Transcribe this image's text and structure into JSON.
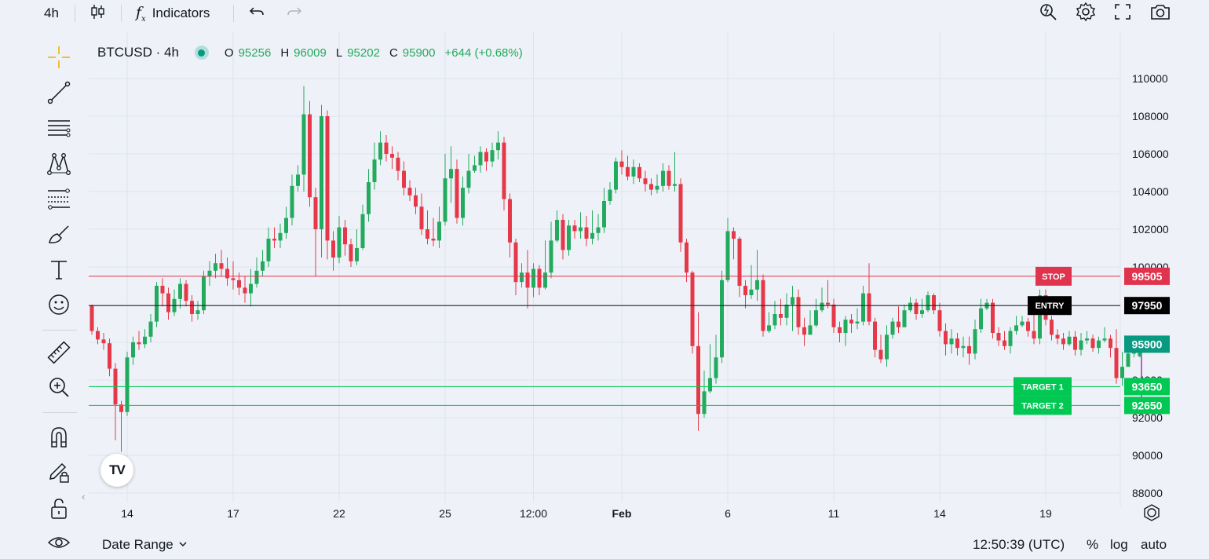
{
  "toolbar": {
    "interval": "4h",
    "indicators_label": "Indicators",
    "icons": [
      "candles-icon",
      "indicators-fx-icon",
      "undo-icon",
      "redo-icon",
      "quick-search-icon",
      "settings-icon",
      "fullscreen-icon",
      "snapshot-camera-icon"
    ]
  },
  "left_toolbar": {
    "icons": [
      "crosshair-icon",
      "trend-line-icon",
      "horizontal-lines-icon",
      "pattern-icon",
      "fib-retracement-icon",
      "brush-icon",
      "text-icon",
      "emoji-icon",
      "ruler-icon",
      "zoom-in-icon",
      "magnet-icon",
      "lock-drawing-icon",
      "unlock-icon",
      "eye-icon"
    ]
  },
  "legend": {
    "symbol": "BTCUSD · 4h",
    "o_label": "O",
    "o_value": "95256",
    "h_label": "H",
    "h_value": "96009",
    "l_label": "L",
    "l_value": "95202",
    "c_label": "C",
    "c_value": "95900",
    "change": "+644 (+0.68%)"
  },
  "bottom_bar": {
    "date_range": "Date Range",
    "time": "12:50:39 (UTC)",
    "percent": "%",
    "log": "log",
    "auto": "auto"
  },
  "logo_text": "TV",
  "colors": {
    "up": "#22ab5e",
    "down": "#e5394a",
    "stop": "#e0334d",
    "entry": "#000000",
    "target": "#00c853",
    "last_price": "#089981",
    "purple": "#9c27b0"
  },
  "chart_data": {
    "type": "candlestick",
    "symbol": "BTCUSD",
    "interval": "4h",
    "ylim": [
      87500,
      111000
    ],
    "y_ticks": [
      88000,
      90000,
      92000,
      94000,
      96000,
      98000,
      100000,
      102000,
      104000,
      106000,
      108000,
      110000
    ],
    "y_tick_labels": [
      "88000",
      "90000",
      "92000",
      "94000",
      "96000",
      "",
      "100000",
      "102000",
      "104000",
      "106000",
      "108000",
      "110000"
    ],
    "x_ticks": [
      {
        "label": "14",
        "bar": 6
      },
      {
        "label": "17",
        "bar": 24
      },
      {
        "label": "22",
        "bar": 42
      },
      {
        "label": "25",
        "bar": 60
      },
      {
        "label": "12:00",
        "bar": 75
      },
      {
        "label": "Feb",
        "bar": 90,
        "bold": true
      },
      {
        "label": "6",
        "bar": 108
      },
      {
        "label": "11",
        "bar": 126
      },
      {
        "label": "14",
        "bar": 144
      },
      {
        "label": "19",
        "bar": 162
      }
    ],
    "candles": [
      [
        97950,
        96600,
        98000,
        96400
      ],
      [
        96600,
        96150,
        96800,
        95900
      ],
      [
        96150,
        95950,
        96500,
        95600
      ],
      [
        95950,
        94600,
        96200,
        94200
      ],
      [
        94600,
        92700,
        94900,
        90800
      ],
      [
        92700,
        92300,
        92900,
        90200
      ],
      [
        92300,
        95200,
        95500,
        92100
      ],
      [
        95200,
        96000,
        96300,
        94800
      ],
      [
        96000,
        95900,
        96600,
        95600
      ],
      [
        95900,
        96300,
        96700,
        95700
      ],
      [
        96300,
        97100,
        97500,
        96000
      ],
      [
        97100,
        99000,
        99200,
        96800
      ],
      [
        99000,
        98600,
        99400,
        97900
      ],
      [
        98600,
        97600,
        98900,
        97200
      ],
      [
        97600,
        98300,
        98800,
        97400
      ],
      [
        98300,
        99100,
        99400,
        97800
      ],
      [
        99100,
        98200,
        99300,
        97900
      ],
      [
        98200,
        97500,
        98500,
        97100
      ],
      [
        97500,
        97700,
        98200,
        97200
      ],
      [
        97700,
        99500,
        99800,
        97500
      ],
      [
        99500,
        99800,
        100300,
        99000
      ],
      [
        99800,
        100200,
        100700,
        99400
      ],
      [
        100200,
        99900,
        100900,
        99500
      ],
      [
        99900,
        99400,
        100500,
        99000
      ],
      [
        99400,
        99300,
        100300,
        98800
      ],
      [
        99300,
        98900,
        99700,
        98500
      ],
      [
        98900,
        98600,
        99500,
        98100
      ],
      [
        98600,
        99100,
        99900,
        97900
      ],
      [
        99100,
        99800,
        100500,
        98900
      ],
      [
        99800,
        100300,
        100900,
        99500
      ],
      [
        100300,
        101500,
        102100,
        100000
      ],
      [
        101500,
        101400,
        102100,
        101000
      ],
      [
        101400,
        101800,
        102300,
        101000
      ],
      [
        101800,
        102600,
        103200,
        101500
      ],
      [
        102600,
        104300,
        104900,
        102200
      ],
      [
        104300,
        104900,
        105400,
        104000
      ],
      [
        104900,
        108100,
        109600,
        104000
      ],
      [
        108100,
        103700,
        108800,
        103200
      ],
      [
        103700,
        102000,
        104200,
        99500
      ],
      [
        102000,
        108000,
        108600,
        100500
      ],
      [
        108000,
        101400,
        108300,
        100400
      ],
      [
        101400,
        100500,
        101900,
        99800
      ],
      [
        100500,
        102100,
        102700,
        100200
      ],
      [
        102100,
        101200,
        102500,
        100600
      ],
      [
        101200,
        100300,
        101500,
        100000
      ],
      [
        100300,
        101000,
        102000,
        100100
      ],
      [
        101000,
        102800,
        103300,
        100900
      ],
      [
        102800,
        104500,
        105200,
        102400
      ],
      [
        104500,
        105700,
        106600,
        104100
      ],
      [
        105700,
        106600,
        107200,
        105400
      ],
      [
        106600,
        106000,
        107000,
        105600
      ],
      [
        106000,
        105800,
        106400,
        105200
      ],
      [
        105800,
        105100,
        106100,
        104600
      ],
      [
        105100,
        104200,
        105600,
        103800
      ],
      [
        104200,
        103800,
        104600,
        103500
      ],
      [
        103800,
        103200,
        104200,
        102800
      ],
      [
        103200,
        102000,
        103900,
        101700
      ],
      [
        102000,
        101500,
        103000,
        101200
      ],
      [
        101500,
        101400,
        102600,
        101100
      ],
      [
        101400,
        102400,
        103200,
        101000
      ],
      [
        102400,
        104700,
        106000,
        102200
      ],
      [
        104700,
        105200,
        106400,
        103400
      ],
      [
        105200,
        102600,
        105700,
        102300
      ],
      [
        102600,
        104200,
        104800,
        102200
      ],
      [
        104200,
        105100,
        106000,
        103900
      ],
      [
        105100,
        105400,
        105900,
        105000
      ],
      [
        105400,
        106100,
        106400,
        105000
      ],
      [
        106100,
        105600,
        106300,
        105100
      ],
      [
        105600,
        106200,
        106600,
        105300
      ],
      [
        106200,
        106600,
        107200,
        105700
      ],
      [
        106600,
        103600,
        106900,
        103000
      ],
      [
        103600,
        101300,
        103900,
        100500
      ],
      [
        101300,
        99200,
        101500,
        98500
      ],
      [
        99200,
        99700,
        100200,
        98900
      ],
      [
        99700,
        98900,
        100900,
        97800
      ],
      [
        98900,
        99900,
        100200,
        98400
      ],
      [
        99900,
        98900,
        100100,
        98500
      ],
      [
        98900,
        99700,
        101400,
        98800
      ],
      [
        99700,
        101400,
        102400,
        99400
      ],
      [
        101400,
        102500,
        103000,
        101300
      ],
      [
        102500,
        100900,
        102800,
        100400
      ],
      [
        100900,
        102200,
        102500,
        100600
      ],
      [
        102200,
        101900,
        102500,
        101500
      ],
      [
        101900,
        102100,
        102900,
        101500
      ],
      [
        102100,
        101500,
        102700,
        101100
      ],
      [
        101500,
        101800,
        103000,
        101200
      ],
      [
        101800,
        102100,
        102800,
        101400
      ],
      [
        102100,
        103500,
        104200,
        101800
      ],
      [
        103500,
        104100,
        104500,
        103300
      ],
      [
        104100,
        105600,
        105800,
        103900
      ],
      [
        105600,
        105300,
        106200,
        104900
      ],
      [
        105300,
        104800,
        105900,
        104600
      ],
      [
        104800,
        105300,
        105700,
        104400
      ],
      [
        105300,
        104700,
        105500,
        104500
      ],
      [
        104700,
        104400,
        105100,
        104000
      ],
      [
        104400,
        104100,
        104700,
        103800
      ],
      [
        104100,
        104300,
        104900,
        103900
      ],
      [
        104300,
        105100,
        105500,
        104000
      ],
      [
        105100,
        104300,
        105400,
        104100
      ],
      [
        104300,
        104400,
        106100,
        104000
      ],
      [
        104400,
        101300,
        104700,
        100800
      ],
      [
        101300,
        99700,
        101500,
        99200
      ],
      [
        99700,
        95800,
        99800,
        95400
      ],
      [
        95800,
        92200,
        97600,
        91300
      ],
      [
        92200,
        93400,
        94500,
        92000
      ],
      [
        93400,
        94100,
        95900,
        93300
      ],
      [
        94100,
        95200,
        96400,
        93800
      ],
      [
        95200,
        99300,
        99800,
        94900
      ],
      [
        99300,
        101900,
        102600,
        99200
      ],
      [
        101900,
        101500,
        102100,
        100400
      ],
      [
        101500,
        99000,
        101600,
        98400
      ],
      [
        99000,
        98500,
        99300,
        97800
      ],
      [
        98500,
        98800,
        100100,
        98300
      ],
      [
        98800,
        99300,
        100900,
        98200
      ],
      [
        99300,
        96600,
        99600,
        96300
      ],
      [
        96600,
        96900,
        97600,
        96500
      ],
      [
        96900,
        97500,
        98200,
        96700
      ],
      [
        97500,
        97300,
        98300,
        96900
      ],
      [
        97300,
        98000,
        98600,
        96900
      ],
      [
        98000,
        98400,
        99000,
        96600
      ],
      [
        98400,
        96800,
        98800,
        96400
      ],
      [
        96800,
        96400,
        97300,
        95800
      ],
      [
        96400,
        96900,
        97700,
        96600
      ],
      [
        96900,
        97700,
        98300,
        96800
      ],
      [
        97700,
        98100,
        98900,
        97600
      ],
      [
        98100,
        98000,
        99300,
        97800
      ],
      [
        98000,
        96800,
        98300,
        96500
      ],
      [
        96800,
        96500,
        97100,
        96000
      ],
      [
        96500,
        97200,
        97400,
        95800
      ],
      [
        97200,
        97000,
        97500,
        96500
      ],
      [
        97000,
        97100,
        97800,
        96700
      ],
      [
        97100,
        98600,
        99000,
        96900
      ],
      [
        98600,
        97100,
        100200,
        96900
      ],
      [
        97100,
        95600,
        97300,
        95200
      ],
      [
        95600,
        95100,
        96400,
        94900
      ],
      [
        95100,
        96400,
        96900,
        94700
      ],
      [
        96400,
        97100,
        97300,
        96200
      ],
      [
        97100,
        96800,
        97900,
        96500
      ],
      [
        96800,
        97700,
        98000,
        96900
      ],
      [
        97700,
        98100,
        98400,
        97600
      ],
      [
        98100,
        97500,
        98300,
        97200
      ],
      [
        97500,
        97700,
        98300,
        97300
      ],
      [
        97700,
        98500,
        98700,
        97600
      ],
      [
        98500,
        97700,
        98600,
        97500
      ],
      [
        97700,
        96600,
        98100,
        96300
      ],
      [
        96600,
        95900,
        97000,
        95300
      ],
      [
        95900,
        96200,
        96700,
        95400
      ],
      [
        96200,
        95700,
        96500,
        95300
      ],
      [
        95700,
        95800,
        96300,
        95200
      ],
      [
        95800,
        95400,
        96300,
        94800
      ],
      [
        95400,
        96700,
        97200,
        95100
      ],
      [
        96700,
        97800,
        98300,
        96500
      ],
      [
        97800,
        98100,
        98300,
        97700
      ],
      [
        98100,
        96500,
        98300,
        96200
      ],
      [
        96500,
        96100,
        96800,
        95800
      ],
      [
        96100,
        95800,
        96600,
        95600
      ],
      [
        95800,
        96600,
        96800,
        95400
      ],
      [
        96600,
        96900,
        97400,
        96400
      ],
      [
        96900,
        97100,
        97400,
        96800
      ],
      [
        97100,
        96600,
        97300,
        96300
      ],
      [
        96600,
        96200,
        97500,
        95900
      ],
      [
        96200,
        98500,
        98800,
        95900
      ],
      [
        98500,
        97200,
        98800,
        96900
      ],
      [
        97200,
        96400,
        97400,
        96100
      ],
      [
        96400,
        96200,
        96700,
        95900
      ],
      [
        96200,
        95900,
        96500,
        95600
      ],
      [
        95900,
        96300,
        96600,
        95800
      ],
      [
        96300,
        95600,
        96600,
        95300
      ],
      [
        95600,
        96100,
        96500,
        95300
      ],
      [
        96100,
        96200,
        96600,
        95900
      ],
      [
        96200,
        95700,
        96400,
        95500
      ],
      [
        95700,
        96100,
        96300,
        95400
      ],
      [
        96100,
        96200,
        96800,
        96000
      ],
      [
        96200,
        95700,
        96400,
        95200
      ],
      [
        95700,
        94100,
        96700,
        93800
      ],
      [
        94100,
        94700,
        95500,
        93700
      ],
      [
        94700,
        95400,
        95600,
        94700
      ],
      [
        95400,
        95600,
        95700,
        95200
      ],
      [
        95256,
        95900,
        96009,
        95202
      ]
    ],
    "levels": [
      {
        "name": "STOP",
        "value": 99505,
        "label": "99505",
        "color": "#e0334d"
      },
      {
        "name": "ENTRY",
        "value": 97950,
        "label": "97950",
        "color": "#000000"
      },
      {
        "name": "TARGET 1",
        "value": 93650,
        "label": "93650",
        "color": "#00c853"
      },
      {
        "name": "TARGET 2",
        "value": 92650,
        "label": "92650",
        "color": "#00c853"
      }
    ],
    "last_price": {
      "value": 95900,
      "label": "95900"
    },
    "position_tool": {
      "entry": 97950,
      "stop": 99505,
      "target": 92650,
      "direction": "short"
    }
  }
}
